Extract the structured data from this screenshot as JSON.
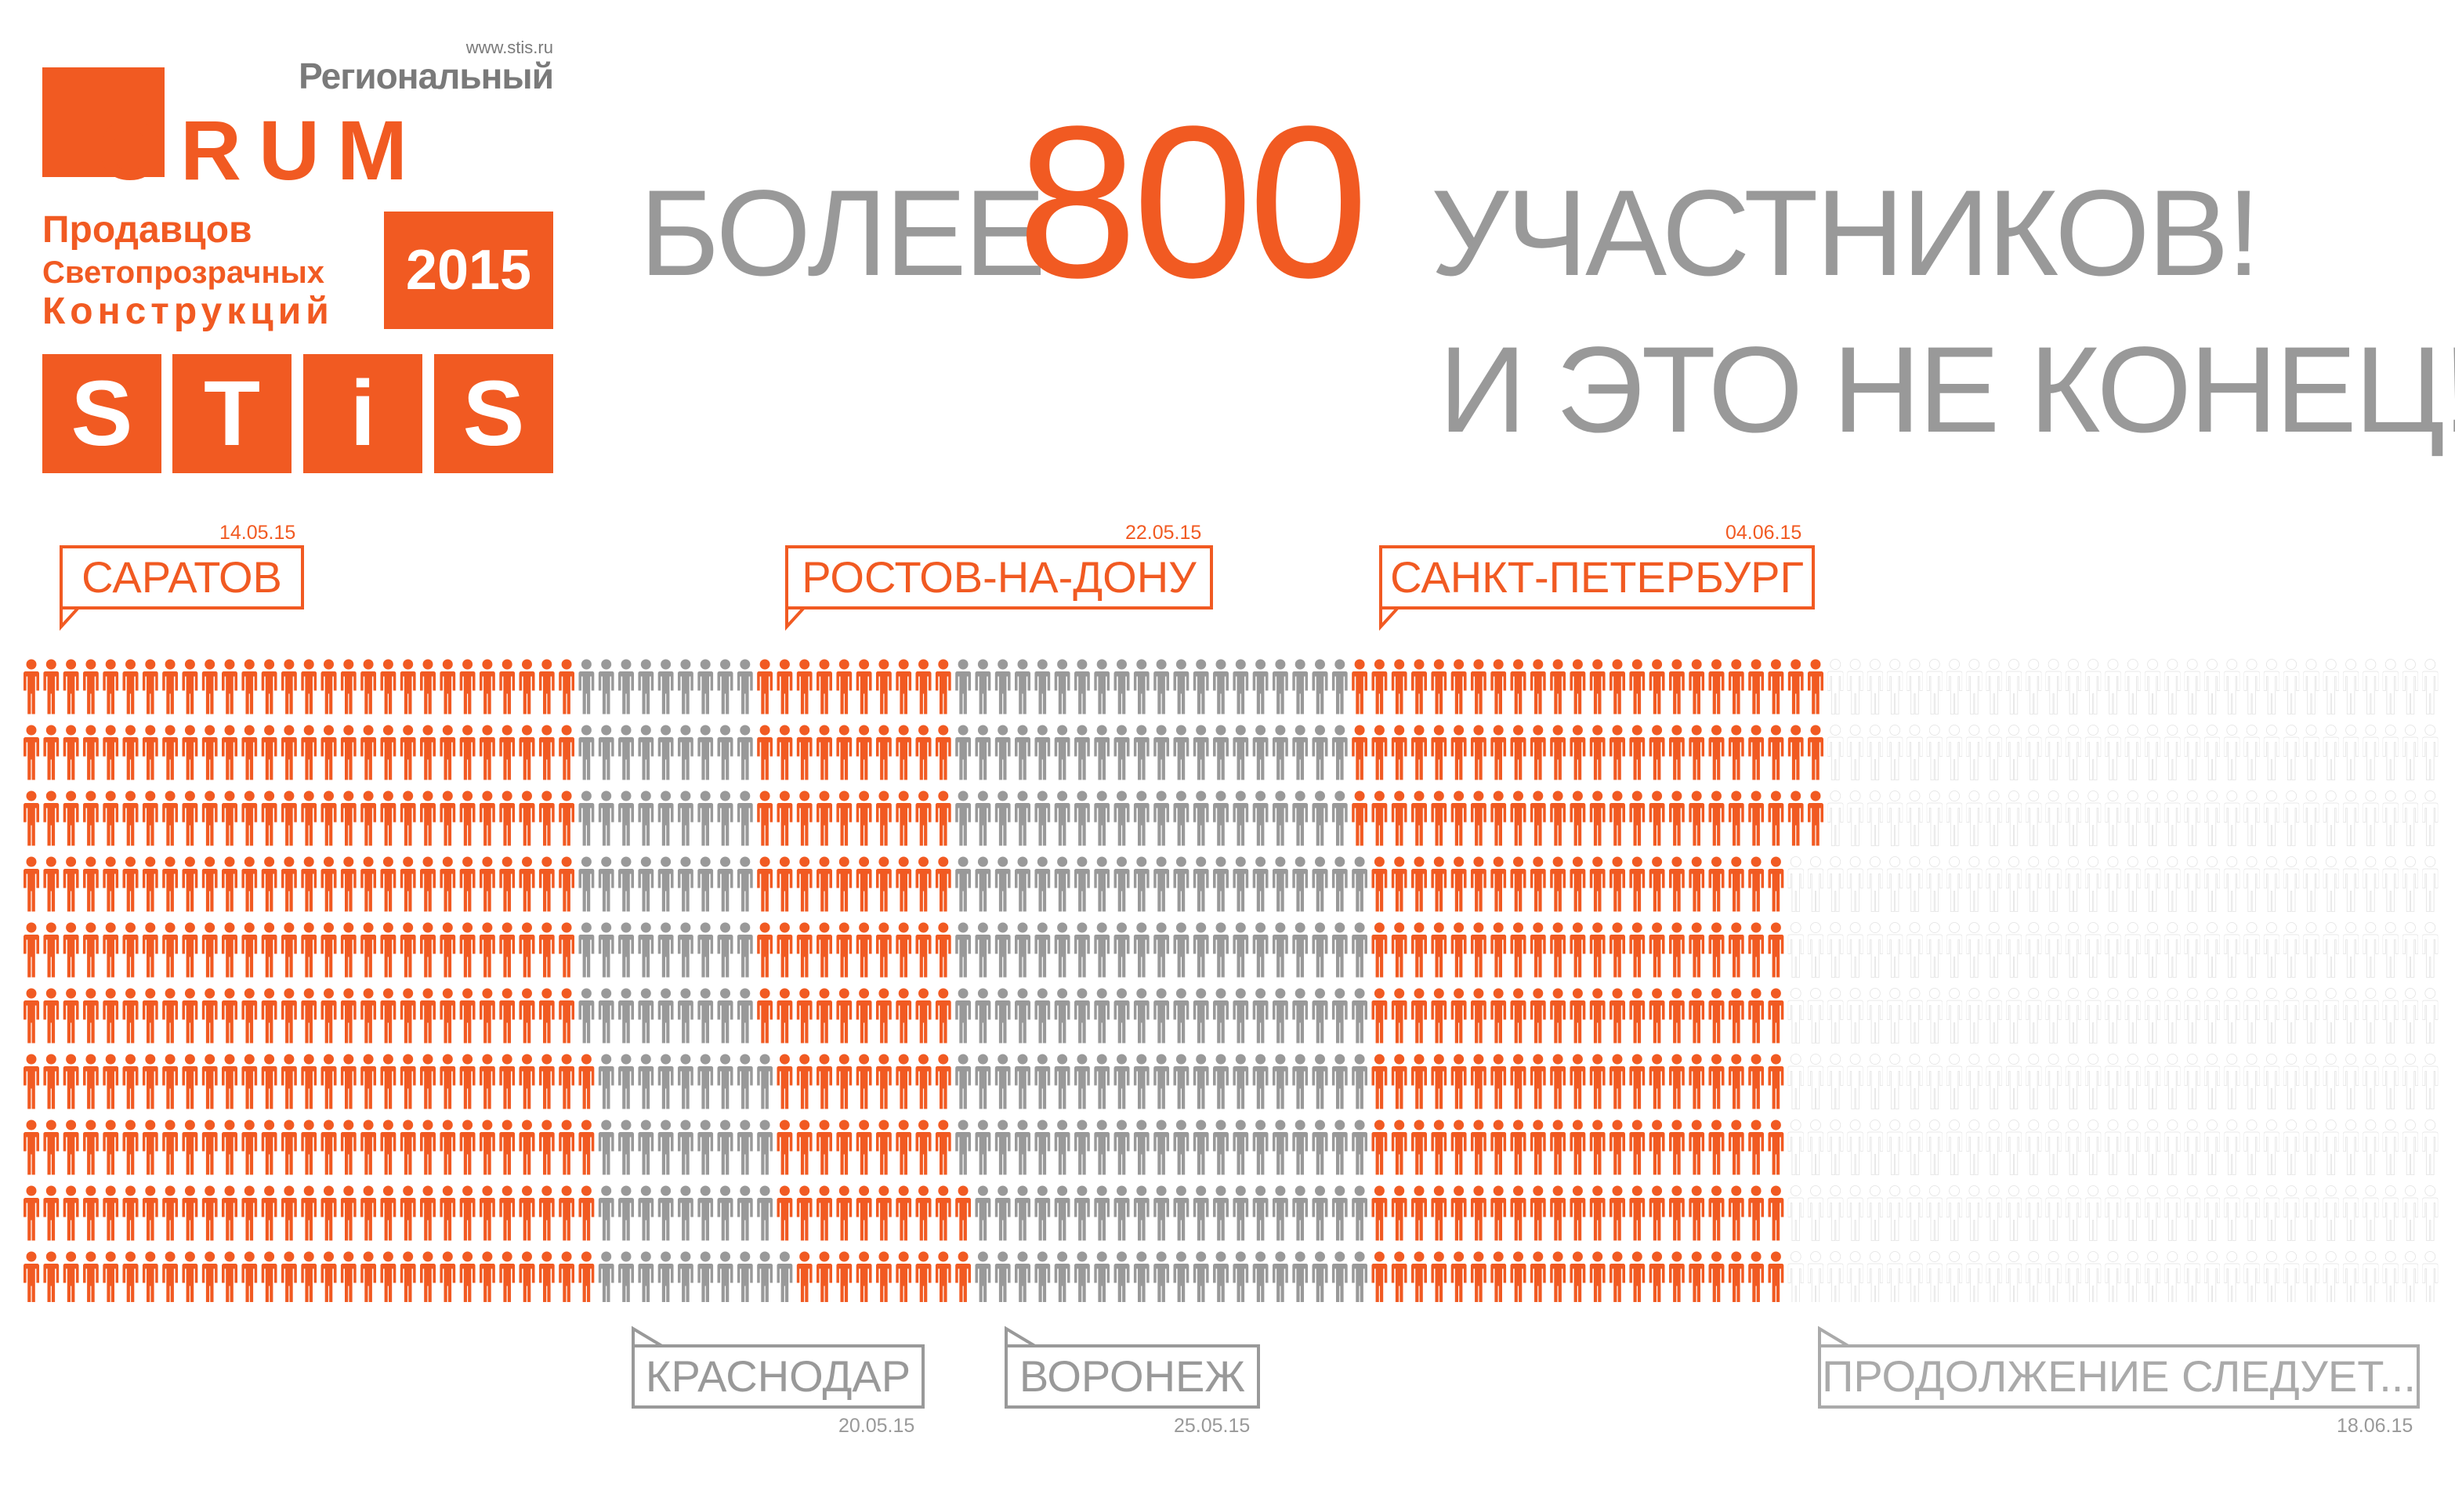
{
  "logo": {
    "website": "www.stis.ru",
    "regional": "Региональный",
    "forum": "ORUM",
    "line1": "Продавцов",
    "line2": "Светопрозрачных",
    "line3": "Конструкций",
    "year": "2015",
    "stis": [
      "S",
      "T",
      "i",
      "S"
    ]
  },
  "headline": {
    "prefix": "БОЛЕЕ",
    "number": "800",
    "suffix": "УЧАСТНИКОВ!",
    "line2": "И ЭТО НЕ КОНЕЦ!"
  },
  "events": [
    {
      "city": "САРАТОВ",
      "date": "14.05.15"
    },
    {
      "city": "КРАСНОДАР",
      "date": "20.05.15"
    },
    {
      "city": "РОСТОВ-НА-ДОНУ",
      "date": "22.05.15"
    },
    {
      "city": "ВОРОНЕЖ",
      "date": "25.05.15"
    },
    {
      "city": "САНКТ-ПЕТЕРБУРГ",
      "date": "04.06.15"
    },
    {
      "city": "ПРОДОЛЖЕНИЕ СЛЕДУЕТ...",
      "date": "18.06.15"
    }
  ],
  "colors": {
    "accent": "#f15a22",
    "gray": "#999999",
    "future": "#e2e2e2"
  },
  "icons": [
    "person-icon"
  ]
}
